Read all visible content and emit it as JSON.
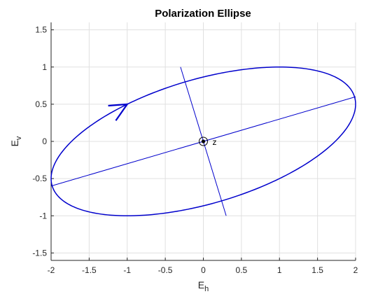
{
  "chart_data": {
    "type": "line",
    "title": "Polarization Ellipse",
    "xlabel": {
      "base": "E",
      "sub": "h"
    },
    "ylabel": {
      "base": "E",
      "sub": "v"
    },
    "xlim": [
      -2,
      2
    ],
    "ylim": [
      -1.6,
      1.6
    ],
    "xticks": [
      -2,
      -1.5,
      -1,
      -0.5,
      0,
      0.5,
      1,
      1.5,
      2
    ],
    "xtick_labels": [
      "-2",
      "-1.5",
      "-1",
      "-0.5",
      "0",
      "0.5",
      "1",
      "1.5",
      "2"
    ],
    "yticks": [
      -1.5,
      -1,
      -0.5,
      0,
      0.5,
      1,
      1.5
    ],
    "ytick_labels": [
      "-1.5",
      "-1",
      "-0.5",
      "0",
      "0.5",
      "1",
      "1.5"
    ],
    "grid": true,
    "line_color": "#0000cc",
    "series": [
      {
        "kind": "ellipse",
        "center": [
          0,
          0
        ],
        "extreme_points": {
          "right": [
            2,
            0.5
          ],
          "left": [
            -2,
            -0.5
          ],
          "top": [
            1,
            1
          ],
          "bottom": [
            -1,
            -1
          ]
        }
      },
      {
        "kind": "major-axis",
        "x": [
          -2,
          2
        ],
        "y": [
          -0.6,
          0.6
        ]
      },
      {
        "kind": "minor-axis",
        "x": [
          -0.3,
          0.3
        ],
        "y": [
          1.0,
          -1.0
        ]
      },
      {
        "kind": "direction-arrow",
        "x": [
          -1.0,
          -1.25,
          -1.15
        ],
        "y": [
          0.5,
          0.48,
          0.28
        ]
      }
    ],
    "annotations": [
      {
        "text": "z",
        "x": 0.12,
        "y": 0
      }
    ]
  }
}
